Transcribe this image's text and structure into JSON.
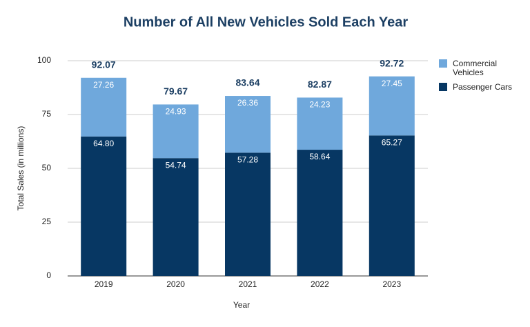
{
  "chart_data": {
    "type": "stacked_bar",
    "title": "Number of All New Vehicles Sold Each Year",
    "x_label": "Year",
    "y_label": "Total Sales (in millions)",
    "categories": [
      "2019",
      "2020",
      "2021",
      "2022",
      "2023"
    ],
    "series": [
      {
        "name": "Passenger Cars",
        "color": "#073763",
        "values": [
          64.8,
          54.74,
          57.28,
          58.64,
          65.27
        ],
        "value_labels": [
          "64.80",
          "54.74",
          "57.28",
          "58.64",
          "65.27"
        ]
      },
      {
        "name": "Commercial Vehicles",
        "color": "#6fa8dc",
        "values": [
          27.26,
          24.93,
          26.36,
          24.23,
          27.45
        ]
      }
    ],
    "totals": [
      92.07,
      79.67,
      83.64,
      82.87,
      92.72
    ],
    "ylim": [
      0,
      100
    ],
    "yticks": [
      0,
      25,
      50,
      75,
      100
    ],
    "grid": true
  }
}
